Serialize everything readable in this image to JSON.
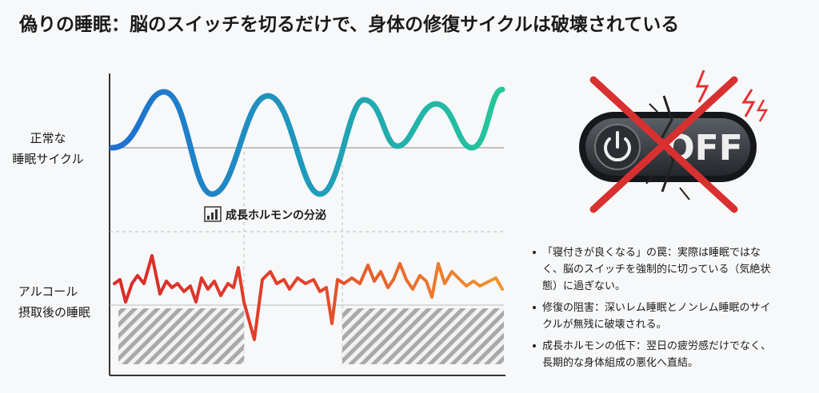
{
  "header": {
    "title": "偽りの睡眠：脳のスイッチを切るだけで、身体の修復サイクルは破壊されている"
  },
  "diagram": {
    "rows": [
      {
        "label_lines": [
          "正常な",
          "睡眠サイクル"
        ]
      },
      {
        "label_lines": [
          "アルコール",
          "摂取後の睡眠"
        ]
      }
    ],
    "annotation": "成長ホルモンの分泌",
    "switch_label": "OFF"
  },
  "bullets": [
    {
      "lines": [
        "「寝付きが良くなる」の罠：実際は睡眠ではな",
        "く、脳のスイッチを強制的に切っている（気絶状",
        "態）に過ぎない。"
      ]
    },
    {
      "lines": [
        "修復の阻害：深いレム睡眠とノンレム睡眠のサイ",
        "クルが無残に破壊される。"
      ]
    },
    {
      "lines": [
        "成長ホルモンの低下：翌日の疲労感だけでなく、",
        "長期的な身体組成の悪化へ直結。"
      ]
    }
  ]
}
